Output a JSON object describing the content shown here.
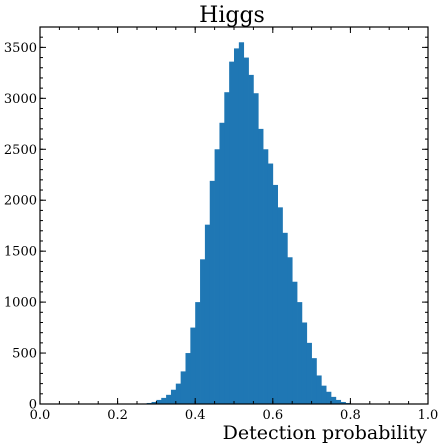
{
  "chart_data": {
    "type": "bar",
    "title": "Higgs",
    "xlabel": "Detection probability",
    "ylabel": "",
    "xlim": [
      0.0,
      1.0
    ],
    "ylim": [
      0,
      3700
    ],
    "x_ticks": [
      "0.0",
      "0.2",
      "0.4",
      "0.6",
      "0.8",
      "1.0"
    ],
    "y_ticks": [
      "0",
      "500",
      "1000",
      "1500",
      "2000",
      "2500",
      "3000",
      "3500"
    ],
    "grid": false,
    "bar_color": "#1f77b4",
    "bin_width": 0.0125,
    "bin_starts": [
      0.2625,
      0.275,
      0.2875,
      0.3,
      0.3125,
      0.325,
      0.3375,
      0.35,
      0.3625,
      0.375,
      0.3875,
      0.4,
      0.4125,
      0.425,
      0.4375,
      0.45,
      0.4625,
      0.475,
      0.4875,
      0.5,
      0.5125,
      0.525,
      0.5375,
      0.55,
      0.5625,
      0.575,
      0.5875,
      0.6,
      0.6125,
      0.625,
      0.6375,
      0.65,
      0.6625,
      0.675,
      0.6875,
      0.7,
      0.7125,
      0.725,
      0.7375,
      0.75,
      0.7625,
      0.775,
      0.7875,
      0.8,
      0.8125
    ],
    "values": [
      5,
      10,
      20,
      40,
      60,
      90,
      140,
      200,
      320,
      500,
      750,
      1000,
      1420,
      1760,
      2190,
      2500,
      2760,
      3060,
      3360,
      3490,
      3550,
      3400,
      3230,
      3050,
      2700,
      2500,
      2360,
      2150,
      1930,
      1680,
      1440,
      1200,
      1000,
      800,
      600,
      450,
      280,
      180,
      120,
      70,
      40,
      20,
      10,
      5,
      2
    ]
  }
}
